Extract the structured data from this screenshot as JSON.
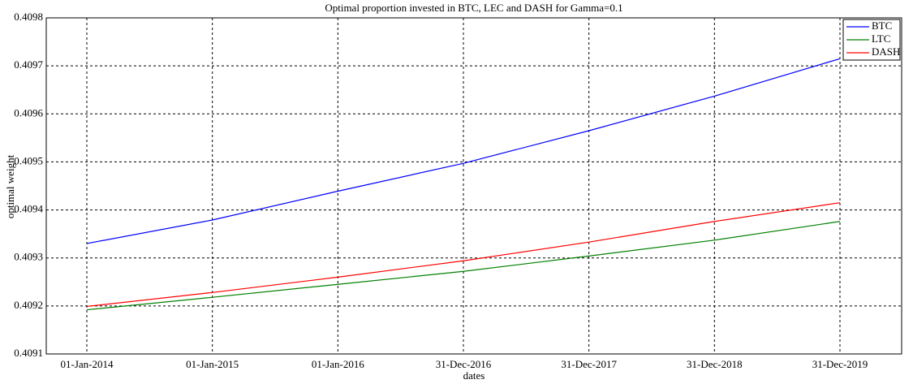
{
  "chart_data": {
    "type": "line",
    "title": "Optimal proportion invested in BTC, LEC and DASH for Gamma=0.1",
    "x_label": "dates",
    "y_label": "optimal weight",
    "categories": [
      "01-Jan-2014",
      "01-Jan-2015",
      "01-Jan-2016",
      "31-Dec-2016",
      "31-Dec-2017",
      "31-Dec-2018",
      "31-Dec-2019"
    ],
    "series": [
      {
        "name": "BTC",
        "color": "#0000ff",
        "values": [
          0.40933,
          0.409379,
          0.409439,
          0.409497,
          0.409565,
          0.409637,
          0.409715
        ]
      },
      {
        "name": "LTC",
        "color": "#008000",
        "values": [
          0.409192,
          0.409218,
          0.409245,
          0.409272,
          0.409304,
          0.409337,
          0.409376
        ]
      },
      {
        "name": "DASH",
        "color": "#ff0000",
        "values": [
          0.409199,
          0.409228,
          0.40926,
          0.409294,
          0.409333,
          0.409376,
          0.409415
        ]
      }
    ],
    "ylim": [
      0.4091,
      0.4098
    ],
    "yticks": [
      0.4091,
      0.4092,
      0.4093,
      0.4094,
      0.4095,
      0.4096,
      0.4097,
      0.4098
    ],
    "grid": true,
    "legend": "top-right"
  }
}
